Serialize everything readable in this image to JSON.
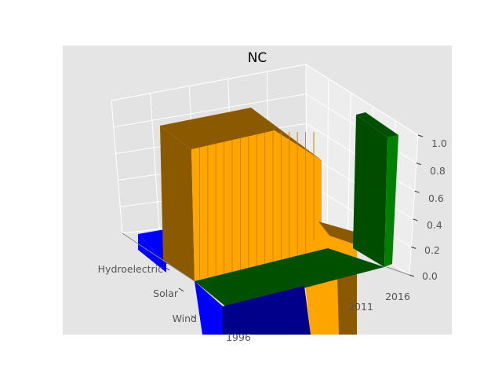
{
  "chart_data": {
    "type": "bar3d",
    "title": "NC",
    "categories": [
      "Hydroelectric",
      "Solar",
      "Wind"
    ],
    "x_tick_labels": [
      "1996",
      "2011",
      "2016"
    ],
    "z_tick_labels": [
      "0.0",
      "0.2",
      "0.4",
      "0.6",
      "0.8",
      "1.0"
    ],
    "zlim": [
      0,
      1
    ],
    "grid": true,
    "colors": {
      "Hydroelectric": "#0000ff",
      "Solar": "#ffa500",
      "Wind": "#008000",
      "pane": "#e5e5e5"
    }
  }
}
